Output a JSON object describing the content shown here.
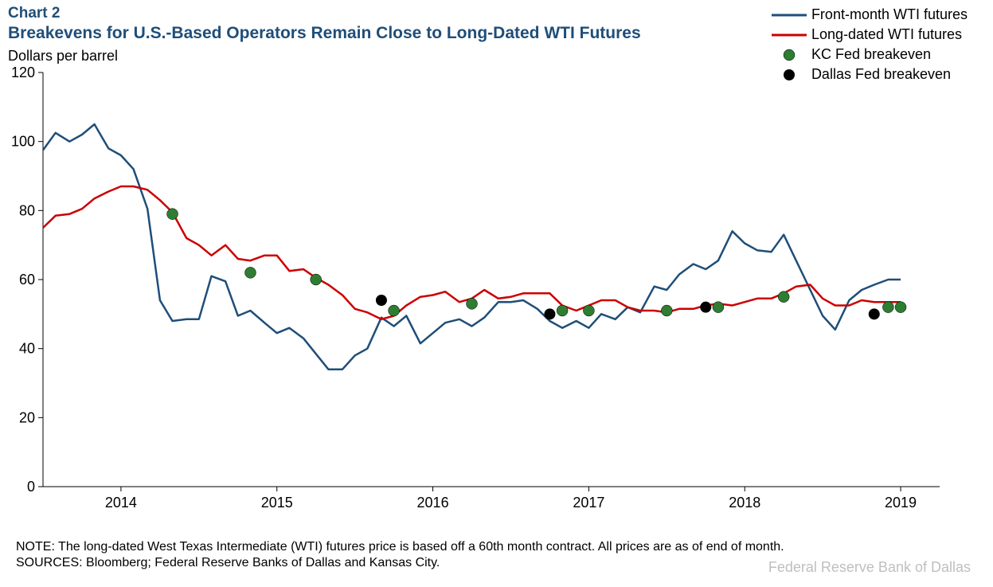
{
  "chart": {
    "label": "Chart 2",
    "title": "Breakevens for U.S.-Based Operators Remain Close to Long-Dated WTI Futures",
    "y_axis_title": "Dollars per barrel",
    "note": "NOTE: The long-dated West Texas Intermediate (WTI) futures price is based off a 60th month contract. All prices are as of end of month.",
    "sources": "SOURCES: Bloomberg; Federal Reserve Banks of Dallas and Kansas City.",
    "watermark": "Federal Reserve Bank of Dallas",
    "background_color": "#ffffff",
    "title_color": "#1f4e79",
    "title_fontsize": 21,
    "label_fontsize": 18,
    "axis": {
      "y": {
        "min": 0,
        "max": 120,
        "step": 20,
        "ticks": [
          0,
          20,
          40,
          60,
          80,
          100,
          120
        ]
      },
      "x": {
        "min": 2013.5,
        "max": 2019.25,
        "ticks": [
          2014,
          2015,
          2016,
          2017,
          2018,
          2019
        ],
        "tick_labels": [
          "2014",
          "2015",
          "2016",
          "2017",
          "2018",
          "2019"
        ]
      }
    },
    "gridline_color": "#000000",
    "axis_line_width": 1,
    "tickmark_length": 6,
    "series": {
      "front_month": {
        "label": "Front-month WTI futures",
        "type": "line",
        "color": "#1f4e79",
        "line_width": 2.5,
        "x": [
          2013.5,
          2013.58,
          2013.67,
          2013.75,
          2013.83,
          2013.92,
          2014.0,
          2014.08,
          2014.17,
          2014.25,
          2014.33,
          2014.42,
          2014.5,
          2014.58,
          2014.67,
          2014.75,
          2014.83,
          2014.92,
          2015.0,
          2015.08,
          2015.17,
          2015.25,
          2015.33,
          2015.42,
          2015.5,
          2015.58,
          2015.67,
          2015.75,
          2015.83,
          2015.92,
          2016.0,
          2016.08,
          2016.17,
          2016.25,
          2016.33,
          2016.42,
          2016.5,
          2016.58,
          2016.67,
          2016.75,
          2016.83,
          2016.92,
          2017.0,
          2017.08,
          2017.17,
          2017.25,
          2017.33,
          2017.42,
          2017.5,
          2017.58,
          2017.67,
          2017.75,
          2017.83,
          2017.92,
          2018.0,
          2018.08,
          2018.17,
          2018.25,
          2018.33,
          2018.42,
          2018.5,
          2018.58,
          2018.67,
          2018.75,
          2018.83,
          2018.92,
          2019.0
        ],
        "y": [
          97.5,
          102.5,
          100.0,
          102.0,
          105.0,
          98.0,
          96.0,
          92.0,
          80.5,
          54.0,
          48.0,
          48.5,
          48.5,
          61.0,
          59.5,
          49.5,
          51.0,
          47.5,
          44.5,
          46.0,
          43.0,
          38.5,
          34.0,
          34.0,
          38.0,
          40.0,
          49.0,
          46.5,
          49.5,
          41.5,
          44.5,
          47.5,
          48.5,
          46.5,
          49.0,
          53.5,
          53.5,
          54.0,
          51.5,
          48.0,
          46.0,
          48.0,
          46.0,
          50.0,
          48.5,
          52.0,
          50.5,
          58.0,
          57.0,
          61.5,
          64.5,
          63.0,
          65.5,
          74.0,
          70.5,
          68.5,
          68.0,
          73.0,
          65.5,
          57.0,
          49.5,
          45.5,
          54.0,
          57.0,
          58.5,
          60.0,
          60.0
        ]
      },
      "long_dated": {
        "label": "Long-dated WTI futures",
        "type": "line",
        "color": "#cc0000",
        "line_width": 2.5,
        "x": [
          2013.5,
          2013.58,
          2013.67,
          2013.75,
          2013.83,
          2013.92,
          2014.0,
          2014.08,
          2014.17,
          2014.25,
          2014.33,
          2014.42,
          2014.5,
          2014.58,
          2014.67,
          2014.75,
          2014.83,
          2014.92,
          2015.0,
          2015.08,
          2015.17,
          2015.25,
          2015.33,
          2015.42,
          2015.5,
          2015.58,
          2015.67,
          2015.75,
          2015.83,
          2015.92,
          2016.0,
          2016.08,
          2016.17,
          2016.25,
          2016.33,
          2016.42,
          2016.5,
          2016.58,
          2016.67,
          2016.75,
          2016.83,
          2016.92,
          2017.0,
          2017.08,
          2017.17,
          2017.25,
          2017.33,
          2017.42,
          2017.5,
          2017.58,
          2017.67,
          2017.75,
          2017.83,
          2017.92,
          2018.0,
          2018.08,
          2018.17,
          2018.25,
          2018.33,
          2018.42,
          2018.5,
          2018.58,
          2018.67,
          2018.75,
          2018.83,
          2018.92,
          2019.0
        ],
        "y": [
          75.0,
          78.5,
          79.0,
          80.5,
          83.5,
          85.5,
          87.0,
          87.0,
          86.0,
          83.0,
          79.5,
          72.0,
          70.0,
          67.0,
          70.0,
          66.0,
          65.5,
          67.0,
          67.0,
          62.5,
          63.0,
          60.5,
          58.5,
          55.5,
          51.5,
          50.5,
          48.5,
          49.5,
          52.5,
          55.0,
          55.5,
          56.5,
          53.5,
          54.5,
          57.0,
          54.5,
          55.0,
          56.0,
          56.0,
          56.0,
          52.5,
          51.0,
          52.5,
          54.0,
          54.0,
          52.0,
          51.0,
          51.0,
          50.5,
          51.5,
          51.5,
          52.5,
          53.0,
          52.5,
          53.5,
          54.5,
          54.5,
          56.0,
          58.0,
          58.5,
          54.5,
          52.5,
          52.5,
          54.0,
          53.5,
          53.5,
          53.5
        ]
      },
      "kc_fed": {
        "label": "KC Fed breakeven",
        "type": "scatter",
        "marker": "circle",
        "fill_color": "#2e7d32",
        "stroke_color": "#000000",
        "stroke_width": 0.5,
        "radius": 7,
        "x": [
          2014.33,
          2014.83,
          2015.25,
          2015.75,
          2016.25,
          2016.83,
          2017.0,
          2017.5,
          2017.83,
          2018.25,
          2018.92,
          2019.0
        ],
        "y": [
          79.0,
          62.0,
          60.0,
          51.0,
          53.0,
          51.0,
          51.0,
          51.0,
          52.0,
          55.0,
          52.0,
          52.0
        ]
      },
      "dallas_fed": {
        "label": "Dallas Fed breakeven",
        "type": "scatter",
        "marker": "circle",
        "fill_color": "#000000",
        "stroke_color": "#000000",
        "stroke_width": 0,
        "radius": 7,
        "x": [
          2015.67,
          2016.75,
          2017.75,
          2018.83
        ],
        "y": [
          54.0,
          50.0,
          52.0,
          50.0
        ]
      }
    },
    "legend": {
      "position": "top-right",
      "fontsize": 18,
      "items": [
        "front_month",
        "long_dated",
        "kc_fed",
        "dallas_fed"
      ]
    }
  }
}
